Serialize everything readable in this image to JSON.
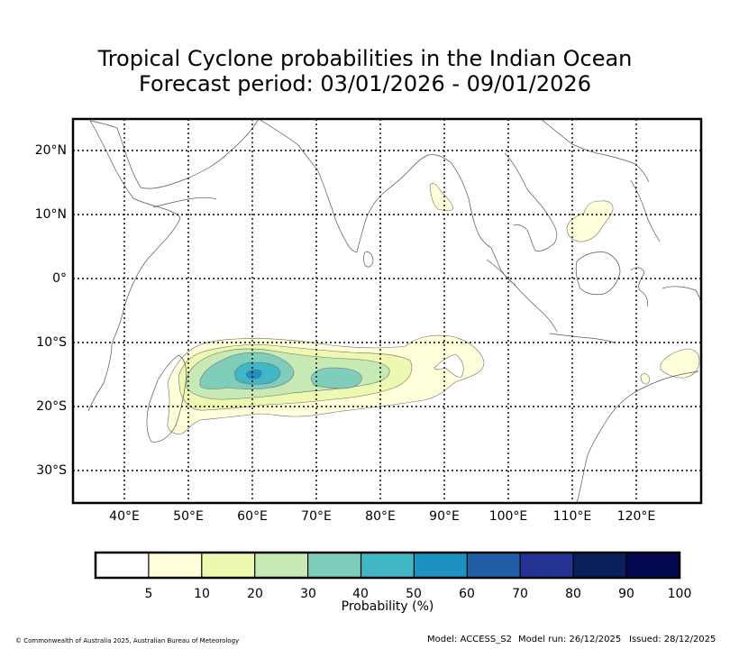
{
  "title": {
    "line1": "Tropical Cyclone probabilities in the Indian Ocean",
    "line2": "Forecast period: 03/01/2026 - 09/01/2026"
  },
  "map": {
    "lat_labels": [
      "20°N",
      "10°N",
      "0°",
      "10°S",
      "20°S",
      "30°S"
    ],
    "lon_labels": [
      "40°E",
      "50°E",
      "60°E",
      "70°E",
      "80°E",
      "90°E",
      "100°E",
      "110°E",
      "120°E"
    ],
    "extent": {
      "lon_min": 32,
      "lon_max": 130,
      "lat_min": -35,
      "lat_max": 25
    }
  },
  "colorbar": {
    "ticks": [
      "5",
      "10",
      "20",
      "30",
      "40",
      "50",
      "60",
      "70",
      "80",
      "90",
      "100"
    ],
    "label": "Probability (%)",
    "colors": [
      "#ffffff",
      "#ffffd9",
      "#edf8b1",
      "#c7e9b4",
      "#7fcdbb",
      "#41b6c4",
      "#1d91c0",
      "#225ea8",
      "#253494",
      "#0b1f5c",
      "#030850"
    ]
  },
  "footer": {
    "copyright": "© Commonwealth of Australia 2025, Australian Bureau of Meteorology",
    "model": "Model: ACCESS_S2",
    "model_run": "Model run: 26/12/2025",
    "issued": "Issued: 28/12/2025"
  }
}
